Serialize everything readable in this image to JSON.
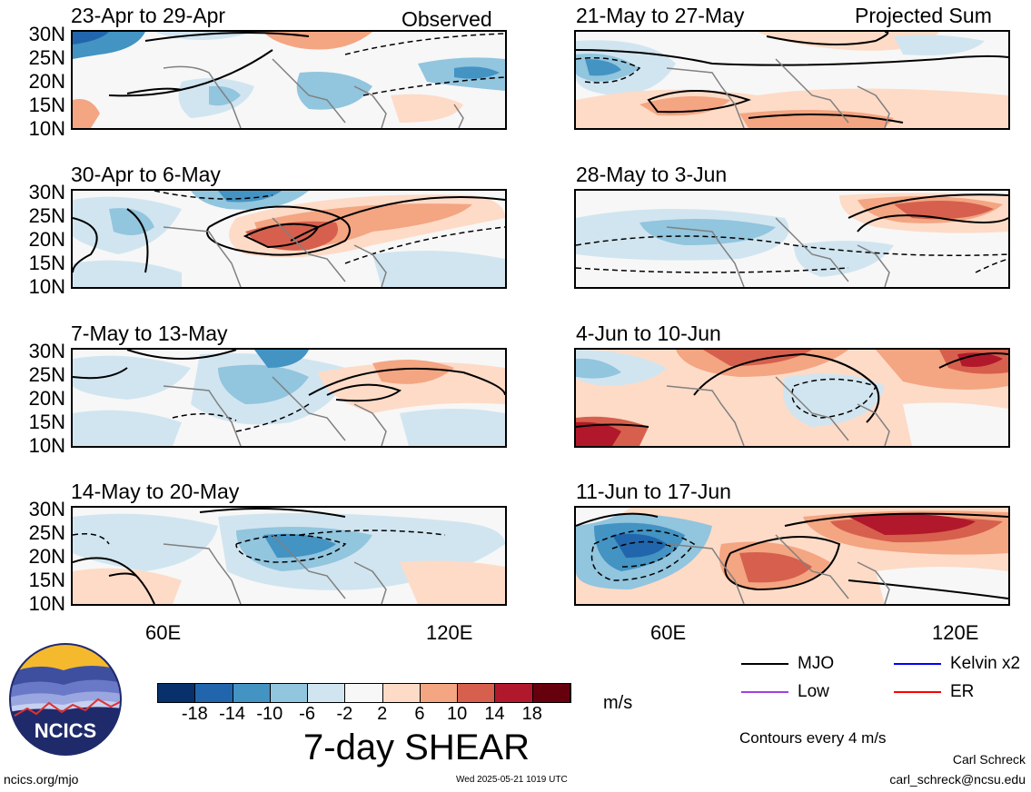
{
  "colors": {
    "blue_dark": "#08306b",
    "red_dark": "#67000d",
    "contour": "#000000",
    "coast": "#808080"
  },
  "panels": [
    {
      "title": "23-Apr to 29-Apr",
      "corner": "Observed"
    },
    {
      "title": "30-Apr to 6-May",
      "corner": ""
    },
    {
      "title": "7-May to 13-May",
      "corner": ""
    },
    {
      "title": "14-May to 20-May",
      "corner": ""
    },
    {
      "title": "21-May to 27-May",
      "corner": "Projected Sum"
    },
    {
      "title": "28-May to 3-Jun",
      "corner": ""
    },
    {
      "title": "4-Jun to 10-Jun",
      "corner": ""
    },
    {
      "title": "11-Jun to 17-Jun",
      "corner": ""
    }
  ],
  "lat_labels": [
    "30N",
    "25N",
    "20N",
    "15N",
    "10N"
  ],
  "lon_labels": [
    "60E",
    "120E"
  ],
  "colorbar": {
    "colors": [
      "#08306b",
      "#2166ac",
      "#4393c3",
      "#92c5de",
      "#d1e5f0",
      "#f7f7f7",
      "#fddbc7",
      "#f4a582",
      "#d6604d",
      "#b2182b",
      "#67000d"
    ],
    "ticks": [
      "-18",
      "-14",
      "-10",
      "-6",
      "-2",
      "2",
      "6",
      "10",
      "14",
      "18"
    ],
    "units": "m/s"
  },
  "title": "7-day SHEAR",
  "legend": [
    {
      "label": "MJO",
      "color": "#000000"
    },
    {
      "label": "Kelvin x2",
      "color": "#0000ff"
    },
    {
      "label": "Low",
      "color": "#a040e0"
    },
    {
      "label": "ER",
      "color": "#ff0000"
    }
  ],
  "contour_note": "Contours every 4 m/s",
  "logo_text": "NCICS",
  "author": "Carl Schreck",
  "email": "carl_schreck@ncsu.edu",
  "site": "ncics.org/mjo",
  "timestamp": "Wed 2025-05-21 1019 UTC"
}
